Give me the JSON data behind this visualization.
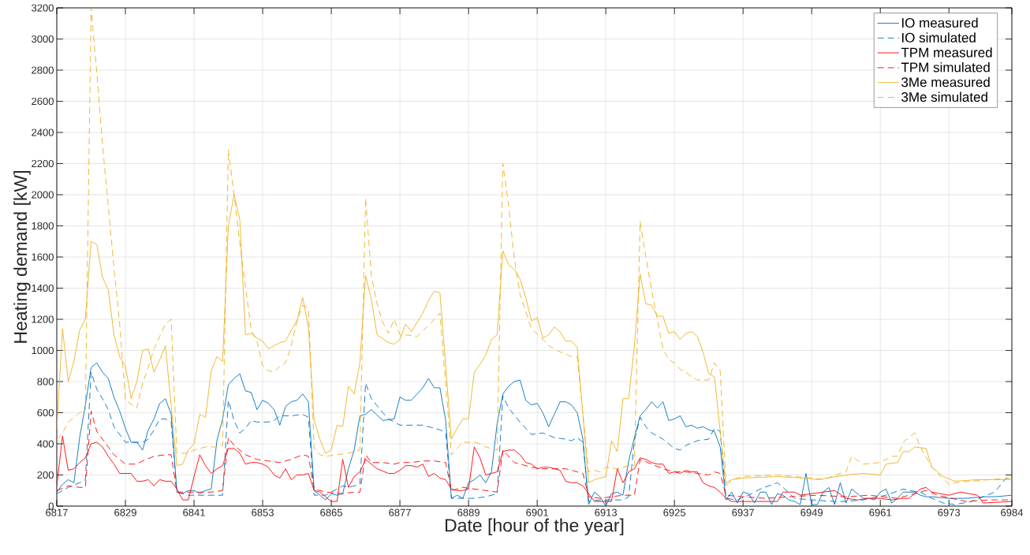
{
  "chart_data": {
    "type": "line",
    "xlabel": "Date [hour of the year]",
    "ylabel": "Heating demand [kW]",
    "xlim": [
      6817,
      6984
    ],
    "ylim": [
      0,
      3200
    ],
    "xticks": [
      6817,
      6829,
      6841,
      6853,
      6865,
      6877,
      6889,
      6901,
      6913,
      6925,
      6937,
      6949,
      6961,
      6973,
      6984
    ],
    "yticks": [
      0,
      200,
      400,
      600,
      800,
      1000,
      1200,
      1400,
      1600,
      1800,
      2000,
      2200,
      2400,
      2600,
      2800,
      3000,
      3200
    ],
    "grid": true,
    "legend": "top right",
    "series": [
      {
        "name": "IO measured",
        "color": "#0072bd",
        "line_style": "solid",
        "x": [
          6817,
          6818,
          6819,
          6820,
          6821,
          6822,
          6823,
          6824,
          6825,
          6826,
          6827,
          6828,
          6829,
          6830,
          6831,
          6832,
          6833,
          6834,
          6835,
          6836,
          6837,
          6838,
          6839,
          6840,
          6841,
          6842,
          6843,
          6844,
          6845,
          6846,
          6847,
          6848,
          6849,
          6850,
          6851,
          6852,
          6853,
          6854,
          6855,
          6856,
          6857,
          6858,
          6859,
          6860,
          6861,
          6862,
          6863,
          6864,
          6865,
          6866,
          6867,
          6868,
          6869,
          6870,
          6871,
          6872,
          6874,
          6876,
          6877,
          6878,
          6879,
          6880,
          6881,
          6882,
          6883,
          6884,
          6885,
          6886,
          6887,
          6888,
          6889,
          6890,
          6891,
          6892,
          6893,
          6894,
          6895,
          6896,
          6897,
          6898,
          6899,
          6900,
          6901,
          6902,
          6903,
          6904,
          6905,
          6906,
          6907,
          6908,
          6909,
          6910,
          6911,
          6912,
          6913,
          6914,
          6915,
          6916,
          6917,
          6918,
          6919,
          6920,
          6921,
          6922,
          6923,
          6924,
          6925,
          6926,
          6927,
          6928,
          6929,
          6930,
          6931,
          6932,
          6933,
          6934,
          6935,
          6936,
          6937,
          6938,
          6939,
          6940,
          6941,
          6942,
          6943,
          6944,
          6945,
          6946,
          6947,
          6948,
          6949,
          6950,
          6951,
          6952,
          6953,
          6954,
          6955,
          6956,
          6957,
          6958,
          6959,
          6960,
          6961,
          6962,
          6963,
          6964,
          6965,
          6966,
          6967,
          6968,
          6969,
          6970,
          6973,
          6976,
          6979,
          6981,
          6984
        ],
        "values": [
          90,
          140,
          170,
          150,
          440,
          650,
          890,
          920,
          860,
          820,
          700,
          610,
          500,
          410,
          410,
          360,
          490,
          560,
          660,
          690,
          590,
          90,
          80,
          100,
          100,
          80,
          100,
          110,
          420,
          560,
          780,
          820,
          850,
          740,
          730,
          620,
          680,
          660,
          620,
          520,
          640,
          670,
          680,
          720,
          670,
          100,
          70,
          40,
          80,
          70,
          80,
          240,
          360,
          580,
          590,
          620,
          550,
          560,
          700,
          680,
          680,
          720,
          760,
          820,
          760,
          760,
          550,
          50,
          70,
          50,
          150,
          170,
          200,
          150,
          220,
          530,
          720,
          770,
          800,
          810,
          680,
          650,
          660,
          600,
          510,
          590,
          670,
          670,
          650,
          600,
          430,
          10,
          90,
          60,
          0,
          80,
          90,
          70,
          290,
          440,
          580,
          620,
          670,
          630,
          670,
          550,
          560,
          580,
          510,
          520,
          500,
          510,
          490,
          480,
          380,
          40,
          90,
          20,
          90,
          80,
          20,
          90,
          90,
          10,
          80,
          70,
          40,
          30,
          10,
          210,
          10,
          10,
          90,
          120,
          10,
          150,
          20,
          110,
          80,
          50,
          50,
          40,
          90,
          110,
          20,
          50,
          90,
          90,
          90,
          70,
          60,
          60,
          50,
          50,
          60,
          60,
          70
        ]
      },
      {
        "name": "IO simulated",
        "color": "#0072bd",
        "line_style": "dashed",
        "x": [
          6817,
          6819,
          6821,
          6822,
          6823,
          6824,
          6825,
          6826,
          6827,
          6828,
          6829,
          6830,
          6831,
          6832,
          6833,
          6834,
          6835,
          6836,
          6837,
          6838,
          6840,
          6842,
          6844,
          6845,
          6846,
          6847,
          6848,
          6849,
          6850,
          6851,
          6852,
          6853,
          6854,
          6855,
          6856,
          6858,
          6860,
          6861,
          6862,
          6864,
          6865,
          6867,
          6868,
          6869,
          6870,
          6871,
          6872,
          6874,
          6875,
          6877,
          6879,
          6881,
          6883,
          6884,
          6885,
          6886,
          6888,
          6890,
          6892,
          6894,
          6895,
          6896,
          6898,
          6900,
          6902,
          6904,
          6906,
          6907,
          6908,
          6909,
          6910,
          6912,
          6914,
          6916,
          6917,
          6918,
          6919,
          6920,
          6921,
          6923,
          6925,
          6926,
          6927,
          6929,
          6931,
          6932,
          6933,
          6934,
          6936,
          6938,
          6940,
          6943,
          6944,
          6946,
          6949,
          6953,
          6955,
          6958,
          6962,
          6965,
          6966,
          6968,
          6970,
          6972,
          6974,
          6977,
          6981,
          6983,
          6984
        ],
        "values": [
          80,
          120,
          150,
          170,
          860,
          750,
          690,
          620,
          510,
          460,
          410,
          410,
          410,
          410,
          430,
          490,
          560,
          560,
          540,
          90,
          70,
          70,
          70,
          70,
          70,
          680,
          550,
          470,
          500,
          550,
          540,
          540,
          540,
          550,
          580,
          580,
          590,
          570,
          70,
          70,
          90,
          130,
          120,
          130,
          140,
          790,
          690,
          600,
          560,
          520,
          520,
          520,
          500,
          490,
          470,
          50,
          50,
          50,
          60,
          80,
          710,
          630,
          540,
          460,
          470,
          440,
          430,
          420,
          440,
          410,
          30,
          40,
          40,
          40,
          60,
          420,
          570,
          510,
          470,
          430,
          370,
          360,
          390,
          420,
          430,
          500,
          480,
          50,
          40,
          70,
          110,
          150,
          120,
          50,
          40,
          30,
          30,
          40,
          70,
          110,
          100,
          90,
          50,
          20,
          10,
          30,
          90,
          180,
          180
        ]
      },
      {
        "name": "TPM measured",
        "color": "#ff0000",
        "line_style": "solid",
        "x": [
          6817,
          6818,
          6819,
          6820,
          6821,
          6822,
          6823,
          6824,
          6825,
          6826,
          6827,
          6828,
          6829,
          6830,
          6831,
          6832,
          6833,
          6834,
          6835,
          6836,
          6837,
          6838,
          6839,
          6840,
          6841,
          6842,
          6843,
          6844,
          6845,
          6846,
          6847,
          6848,
          6849,
          6850,
          6851,
          6852,
          6853,
          6854,
          6855,
          6856,
          6857,
          6858,
          6859,
          6860,
          6861,
          6862,
          6863,
          6864,
          6865,
          6866,
          6867,
          6868,
          6869,
          6870,
          6871,
          6872,
          6873,
          6875,
          6876,
          6877,
          6878,
          6879,
          6880,
          6881,
          6882,
          6883,
          6884,
          6885,
          6886,
          6887,
          6888,
          6889,
          6890,
          6891,
          6892,
          6893,
          6894,
          6895,
          6896,
          6897,
          6898,
          6899,
          6900,
          6901,
          6902,
          6903,
          6904,
          6905,
          6906,
          6907,
          6908,
          6909,
          6910,
          6911,
          6912,
          6913,
          6914,
          6915,
          6916,
          6917,
          6918,
          6919,
          6920,
          6921,
          6922,
          6923,
          6924,
          6925,
          6926,
          6927,
          6928,
          6929,
          6930,
          6931,
          6932,
          6933,
          6934,
          6935,
          6937,
          6940,
          6943,
          6944,
          6946,
          6947,
          6949,
          6951,
          6953,
          6955,
          6957,
          6959,
          6961,
          6963,
          6965,
          6966,
          6968,
          6969,
          6970,
          6973,
          6975,
          6978,
          6979,
          6984
        ],
        "values": [
          130,
          450,
          230,
          240,
          280,
          310,
          400,
          410,
          380,
          320,
          270,
          210,
          210,
          210,
          160,
          160,
          170,
          130,
          170,
          160,
          160,
          110,
          40,
          40,
          190,
          330,
          260,
          210,
          240,
          260,
          370,
          370,
          340,
          270,
          280,
          280,
          270,
          250,
          200,
          180,
          240,
          170,
          200,
          200,
          210,
          100,
          90,
          60,
          30,
          30,
          300,
          120,
          190,
          220,
          300,
          270,
          240,
          210,
          210,
          230,
          260,
          260,
          250,
          270,
          190,
          210,
          180,
          170,
          110,
          100,
          100,
          110,
          380,
          310,
          200,
          210,
          220,
          350,
          360,
          360,
          330,
          280,
          270,
          240,
          250,
          250,
          240,
          230,
          160,
          150,
          150,
          130,
          80,
          30,
          30,
          30,
          30,
          240,
          150,
          220,
          240,
          310,
          300,
          280,
          270,
          270,
          210,
          220,
          210,
          230,
          220,
          220,
          150,
          130,
          120,
          90,
          50,
          30,
          30,
          30,
          30,
          90,
          90,
          70,
          80,
          90,
          100,
          50,
          40,
          50,
          50,
          40,
          50,
          50,
          110,
          120,
          90,
          70,
          90,
          70,
          20,
          30
        ]
      },
      {
        "name": "TPM simulated",
        "color": "#ff0000",
        "line_style": "dashed",
        "x": [
          6817,
          6819,
          6821,
          6822,
          6823,
          6824,
          6825,
          6826,
          6827,
          6828,
          6829,
          6831,
          6832,
          6834,
          6836,
          6837,
          6838,
          6840,
          6842,
          6844,
          6846,
          6847,
          6848,
          6849,
          6850,
          6852,
          6854,
          6856,
          6858,
          6860,
          6861,
          6862,
          6864,
          6867,
          6869,
          6870,
          6871,
          6872,
          6874,
          6876,
          6877,
          6879,
          6881,
          6883,
          6885,
          6886,
          6888,
          6890,
          6892,
          6894,
          6895,
          6897,
          6898,
          6900,
          6902,
          6904,
          6906,
          6908,
          6909,
          6910,
          6912,
          6914,
          6916,
          6918,
          6919,
          6921,
          6923,
          6925,
          6927,
          6929,
          6931,
          6932,
          6933,
          6934,
          6937,
          6941,
          6945,
          6950,
          6955,
          6959,
          6964,
          6966,
          6969,
          6971,
          6976,
          6980,
          6984
        ],
        "values": [
          100,
          130,
          120,
          120,
          610,
          480,
          430,
          380,
          330,
          300,
          270,
          270,
          290,
          320,
          330,
          330,
          90,
          90,
          90,
          90,
          100,
          440,
          390,
          360,
          330,
          300,
          290,
          280,
          300,
          330,
          320,
          110,
          90,
          80,
          90,
          90,
          330,
          280,
          280,
          270,
          280,
          280,
          290,
          290,
          280,
          100,
          120,
          110,
          100,
          90,
          360,
          280,
          270,
          250,
          240,
          240,
          240,
          220,
          210,
          60,
          50,
          60,
          70,
          70,
          300,
          270,
          240,
          220,
          220,
          210,
          200,
          220,
          210,
          70,
          60,
          50,
          60,
          70,
          60,
          70,
          50,
          70,
          100,
          70,
          30,
          40,
          40
        ]
      },
      {
        "name": "3Me measured",
        "color": "#edb120",
        "line_style": "solid",
        "x": [
          6817,
          6818,
          6819,
          6820,
          6821,
          6822,
          6823,
          6824,
          6825,
          6826,
          6827,
          6828,
          6829,
          6830,
          6831,
          6832,
          6833,
          6834,
          6835,
          6836,
          6838,
          6839,
          6840,
          6841,
          6842,
          6843,
          6844,
          6845,
          6846,
          6847,
          6848,
          6849,
          6850,
          6851,
          6852,
          6853,
          6854,
          6855,
          6856,
          6857,
          6858,
          6859,
          6860,
          6861,
          6862,
          6863,
          6864,
          6865,
          6866,
          6867,
          6868,
          6869,
          6870,
          6871,
          6872,
          6873,
          6875,
          6876,
          6877,
          6878,
          6879,
          6880,
          6881,
          6882,
          6883,
          6884,
          6886,
          6887,
          6888,
          6889,
          6890,
          6891,
          6892,
          6893,
          6894,
          6895,
          6896,
          6897,
          6898,
          6899,
          6900,
          6901,
          6902,
          6903,
          6904,
          6905,
          6906,
          6907,
          6908,
          6910,
          6911,
          6912,
          6913,
          6914,
          6915,
          6916,
          6917,
          6918,
          6919,
          6920,
          6921,
          6922,
          6923,
          6924,
          6925,
          6926,
          6927,
          6928,
          6929,
          6930,
          6931,
          6932,
          6934,
          6935,
          6937,
          6943,
          6948,
          6950,
          6955,
          6958,
          6961,
          6962,
          6964,
          6965,
          6966,
          6967,
          6969,
          6970,
          6971,
          6972,
          6974,
          6978,
          6984
        ],
        "values": [
          490,
          1140,
          800,
          930,
          1130,
          1200,
          1700,
          1680,
          1470,
          1390,
          1100,
          960,
          900,
          690,
          800,
          1000,
          1010,
          860,
          940,
          1030,
          260,
          270,
          360,
          400,
          590,
          570,
          870,
          960,
          930,
          1800,
          2000,
          1840,
          1100,
          1110,
          1080,
          1060,
          1010,
          1030,
          1050,
          1060,
          1130,
          1190,
          1340,
          1150,
          550,
          430,
          340,
          360,
          520,
          510,
          770,
          720,
          920,
          1480,
          1330,
          1100,
          1050,
          1040,
          1070,
          1170,
          1120,
          1180,
          1240,
          1320,
          1380,
          1370,
          430,
          500,
          560,
          560,
          860,
          910,
          970,
          1070,
          1100,
          1640,
          1550,
          1520,
          1460,
          1340,
          1190,
          1210,
          1080,
          1100,
          1150,
          1120,
          1060,
          1060,
          1020,
          150,
          170,
          180,
          190,
          420,
          350,
          690,
          690,
          1030,
          1490,
          1300,
          1290,
          1220,
          1220,
          1110,
          1120,
          1070,
          1110,
          1120,
          1090,
          990,
          850,
          830,
          130,
          170,
          180,
          190,
          180,
          170,
          200,
          210,
          200,
          270,
          280,
          350,
          350,
          380,
          370,
          250,
          220,
          190,
          160,
          170,
          170
        ]
      },
      {
        "name": "3Me simulated",
        "color": "#edb120",
        "line_style": "dashed",
        "x": [
          6817,
          6818,
          6819,
          6820,
          6821,
          6822,
          6823,
          6824,
          6825,
          6826,
          6827,
          6828,
          6829,
          6831,
          6832,
          6833,
          6834,
          6835,
          6836,
          6837,
          6838,
          6839,
          6840,
          6841,
          6842,
          6843,
          6844,
          6845,
          6846,
          6847,
          6848,
          6849,
          6850,
          6851,
          6852,
          6853,
          6854,
          6855,
          6856,
          6857,
          6858,
          6859,
          6860,
          6861,
          6862,
          6863,
          6864,
          6866,
          6868,
          6869,
          6870,
          6871,
          6872,
          6873,
          6874,
          6875,
          6876,
          6877,
          6878,
          6880,
          6882,
          6884,
          6886,
          6887,
          6888,
          6889,
          6890,
          6891,
          6892,
          6893,
          6894,
          6895,
          6896,
          6897,
          6898,
          6900,
          6902,
          6903,
          6905,
          6907,
          6908,
          6910,
          6911,
          6912,
          6913,
          6915,
          6916,
          6917,
          6918,
          6919,
          6920,
          6921,
          6923,
          6924,
          6925,
          6926,
          6927,
          6928,
          6929,
          6930,
          6931,
          6932,
          6933,
          6934,
          6935,
          6937,
          6943,
          6949,
          6951,
          6954,
          6955,
          6956,
          6958,
          6961,
          6963,
          6964,
          6965,
          6967,
          6968,
          6970,
          6971,
          6973,
          6974,
          6977,
          6980,
          6984
        ],
        "values": [
          430,
          470,
          540,
          570,
          600,
          620,
          3200,
          2780,
          2320,
          1930,
          1530,
          1170,
          680,
          630,
          790,
          890,
          1010,
          1090,
          1170,
          1200,
          340,
          340,
          340,
          360,
          370,
          380,
          380,
          380,
          390,
          2290,
          2000,
          1690,
          1410,
          1130,
          1060,
          900,
          870,
          860,
          900,
          920,
          1030,
          1190,
          1290,
          1270,
          370,
          330,
          320,
          330,
          340,
          350,
          360,
          1980,
          1480,
          1300,
          1180,
          1110,
          1200,
          1100,
          1100,
          1090,
          1160,
          1240,
          330,
          370,
          410,
          410,
          410,
          400,
          380,
          370,
          360,
          2200,
          1930,
          1590,
          1360,
          1140,
          1070,
          1030,
          990,
          960,
          960,
          220,
          230,
          220,
          250,
          240,
          250,
          260,
          260,
          1830,
          1600,
          1390,
          1010,
          940,
          920,
          880,
          860,
          830,
          810,
          810,
          810,
          920,
          870,
          150,
          170,
          190,
          200,
          180,
          170,
          210,
          220,
          320,
          270,
          280,
          320,
          320,
          410,
          470,
          380,
          250,
          210,
          140,
          150,
          160,
          170,
          180
        ]
      }
    ]
  }
}
